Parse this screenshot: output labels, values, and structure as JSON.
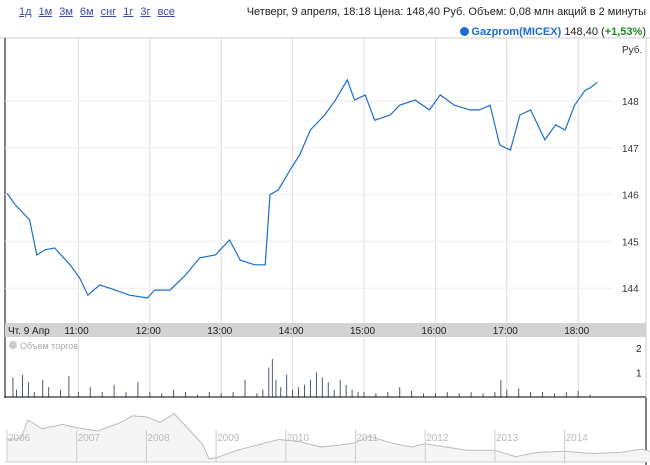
{
  "range_links": [
    "1д",
    "1м",
    "3м",
    "6м",
    "снг",
    "1г",
    "3г",
    "все"
  ],
  "info": "Четверг, 9 апреля, 18:18 Цена: 148,40 Руб. Объем: 0,08 млн акций в 2 минуты",
  "legend": {
    "name": "Gazprom(MICEX)",
    "price": "148,40",
    "change": "+1,53%",
    "color": "#1c6dd0"
  },
  "chart_data": [
    {
      "type": "line",
      "series": [
        {
          "name": "Gazprom(MICEX)",
          "x": [
            "10:00",
            "10:07",
            "10:19",
            "10:25",
            "10:32",
            "10:40",
            "10:53",
            "11:01",
            "11:08",
            "11:18",
            "11:31",
            "11:43",
            "11:58",
            "12:04",
            "12:17",
            "12:30",
            "12:42",
            "12:55",
            "13:07",
            "13:16",
            "13:28",
            "13:37",
            "13:41",
            "13:48",
            "13:58",
            "14:06",
            "14:15",
            "14:27",
            "14:36",
            "14:46",
            "14:52",
            "15:01",
            "15:09",
            "15:22",
            "15:30",
            "15:43",
            "15:55",
            "16:04",
            "16:16",
            "16:29",
            "16:37",
            "16:46",
            "16:54",
            "17:03",
            "17:11",
            "17:20",
            "17:32",
            "17:41",
            "17:49",
            "17:57",
            "18:06",
            "18:10",
            "18:16"
          ],
          "values": [
            146.03,
            145.78,
            145.46,
            144.71,
            144.82,
            144.86,
            144.5,
            144.22,
            143.85,
            144.07,
            143.96,
            143.85,
            143.79,
            143.96,
            143.96,
            144.28,
            144.65,
            144.71,
            145.03,
            144.6,
            144.5,
            144.5,
            146.0,
            146.1,
            146.53,
            146.85,
            147.38,
            147.7,
            148.02,
            148.45,
            148.02,
            148.13,
            147.59,
            147.7,
            147.91,
            148.02,
            147.81,
            148.13,
            147.91,
            147.81,
            147.81,
            147.91,
            147.06,
            146.95,
            147.7,
            147.81,
            147.17,
            147.49,
            147.38,
            147.91,
            148.23,
            148.28,
            148.4
          ]
        }
      ],
      "y_unit": "Руб.",
      "y_ticks": [
        "144",
        "145",
        "146",
        "147",
        "148"
      ],
      "ylim": [
        143.4,
        149.4
      ],
      "x_ticks": [
        "Чт. 9 Апр",
        "11:00",
        "12:00",
        "13:00",
        "14:00",
        "15:00",
        "16:00",
        "17:00",
        "18:00"
      ],
      "grid": true
    },
    {
      "type": "bar",
      "label": "Объем торгов",
      "y_ticks": [
        "1",
        "2"
      ],
      "x": [
        "10:05",
        "10:08",
        "10:13",
        "10:18",
        "10:23",
        "10:30",
        "10:35",
        "10:45",
        "10:52",
        "11:00",
        "11:10",
        "11:20",
        "11:30",
        "11:40",
        "11:50",
        "12:00",
        "12:10",
        "12:20",
        "12:30",
        "12:40",
        "12:50",
        "13:00",
        "13:10",
        "13:20",
        "13:30",
        "13:35",
        "13:40",
        "13:43",
        "13:46",
        "13:50",
        "13:55",
        "14:00",
        "14:05",
        "14:10",
        "14:15",
        "14:20",
        "14:25",
        "14:30",
        "14:35",
        "14:40",
        "14:45",
        "14:50",
        "14:55",
        "15:00",
        "15:10",
        "15:20",
        "15:30",
        "15:40",
        "15:50",
        "16:00",
        "16:10",
        "16:20",
        "16:30",
        "16:40",
        "16:50",
        "16:55",
        "17:00",
        "17:10",
        "17:20",
        "17:30",
        "17:40",
        "17:50",
        "18:00",
        "18:10"
      ],
      "values": [
        0.8,
        0.3,
        0.9,
        0.6,
        0.2,
        0.7,
        0.4,
        0.3,
        0.85,
        0.2,
        0.4,
        0.2,
        0.5,
        0.2,
        0.6,
        0.2,
        0.15,
        0.3,
        0.2,
        0.1,
        0.2,
        0.15,
        0.2,
        0.7,
        0.15,
        0.3,
        1.2,
        1.55,
        0.7,
        0.4,
        0.9,
        0.3,
        0.4,
        0.5,
        0.7,
        1.0,
        0.8,
        0.6,
        0.3,
        0.7,
        0.5,
        0.3,
        0.2,
        0.2,
        0.15,
        0.2,
        0.4,
        0.25,
        0.15,
        0.15,
        0.2,
        0.15,
        0.2,
        0.15,
        0.2,
        0.7,
        0.3,
        0.35,
        0.2,
        0.2,
        0.15,
        0.2,
        0.25,
        0.1
      ]
    },
    {
      "type": "area",
      "x_ticks": [
        "2006",
        "2007",
        "2008",
        "2009",
        "2010",
        "2011",
        "2012",
        "2013",
        "2014"
      ],
      "x": [
        2006.0,
        2006.2,
        2006.3,
        2006.5,
        2006.8,
        2007.0,
        2007.3,
        2007.6,
        2007.8,
        2008.0,
        2008.2,
        2008.4,
        2008.6,
        2008.8,
        2008.9,
        2009.0,
        2009.3,
        2009.6,
        2009.9,
        2010.2,
        2010.5,
        2010.8,
        2011.0,
        2011.2,
        2011.5,
        2011.8,
        2012.0,
        2012.3,
        2012.6,
        2013.0,
        2013.3,
        2013.6,
        2014.0,
        2014.4,
        2014.8,
        2015.1,
        2015.3
      ],
      "values": [
        200,
        205,
        290,
        250,
        270,
        255,
        240,
        275,
        310,
        305,
        280,
        320,
        250,
        180,
        110,
        115,
        150,
        175,
        200,
        190,
        165,
        175,
        185,
        215,
        185,
        165,
        180,
        165,
        150,
        150,
        120,
        140,
        145,
        135,
        140,
        155,
        140
      ]
    }
  ]
}
